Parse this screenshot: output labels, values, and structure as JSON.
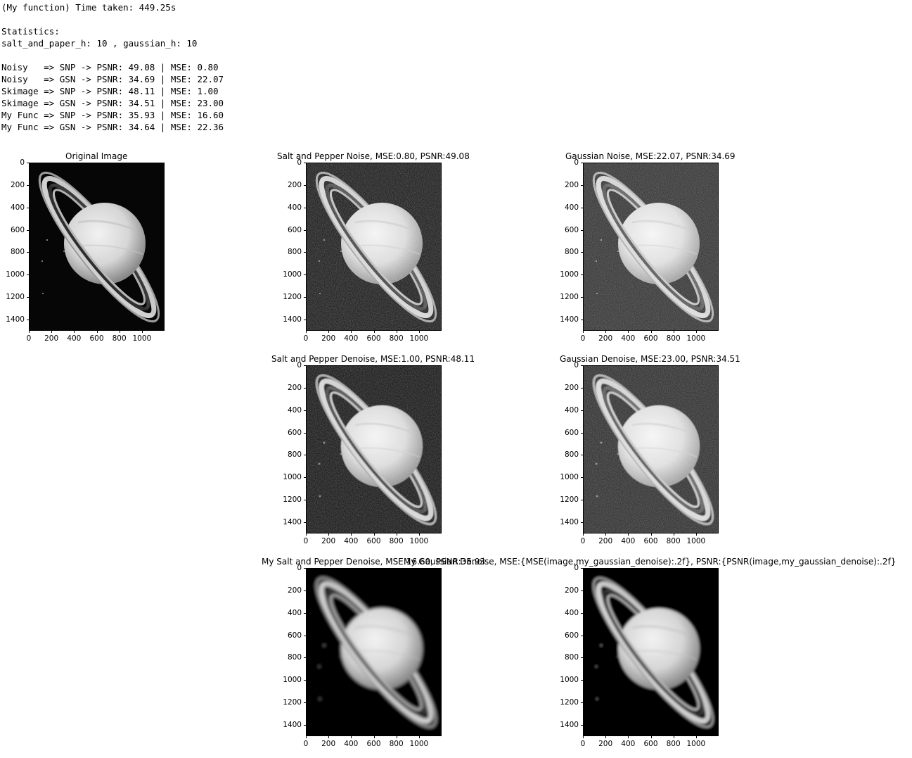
{
  "console": {
    "lines": [
      "(My function) Time taken: 449.25s",
      "",
      "Statistics:",
      "salt_and_paper_h: 10 , gaussian_h: 10",
      "",
      "Noisy   => SNP -> PSNR: 49.08 | MSE: 0.80",
      "Noisy   => GSN -> PSNR: 34.69 | MSE: 22.07",
      "Skimage => SNP -> PSNR: 48.11 | MSE: 1.00",
      "Skimage => GSN -> PSNR: 34.51 | MSE: 23.00",
      "My Func => SNP -> PSNR: 35.93 | MSE: 16.60",
      "My Func => GSN -> PSNR: 34.64 | MSE: 22.36"
    ]
  },
  "axes": {
    "y_ticks": [
      "0",
      "200",
      "400",
      "600",
      "800",
      "1000",
      "1200",
      "1400"
    ],
    "x_ticks": [
      "0",
      "200",
      "400",
      "600",
      "800",
      "1000"
    ],
    "y_values": [
      0,
      200,
      400,
      600,
      800,
      1000,
      1200,
      1400
    ],
    "x_values": [
      0,
      200,
      400,
      600,
      800,
      1000
    ],
    "img_height": 1500,
    "img_width": 1200
  },
  "panels": [
    {
      "title": "Original Image",
      "blur": 0,
      "noise": "none"
    },
    {
      "title": "Salt and Pepper Noise, MSE:0.80, PSNR:49.08",
      "blur": 0,
      "noise": "snp"
    },
    {
      "title": "Gaussian Noise, MSE:22.07, PSNR:34.69",
      "blur": 0,
      "noise": "gsn"
    },
    {
      "title": "Salt and Pepper Denoise, MSE:1.00, PSNR:48.11",
      "blur": 0.4,
      "noise": "snp"
    },
    {
      "title": "Gaussian Denoise, MSE:23.00, PSNR:34.51",
      "blur": 0.4,
      "noise": "gsn"
    },
    {
      "title": "My Salt and Pepper Denoise, MSE:16.60, PSNR:35.93",
      "blur": 2.2,
      "noise": "none"
    },
    {
      "title": "My Gaussian Denoise, MSE:{MSE(image,my_gaussian_denoise):.2f}, PSNR:{PSNR(image,my_gaussian_denoise):.2f}",
      "blur": 1.6,
      "noise": "none"
    }
  ],
  "colors": {
    "background": "#ffffff",
    "image_bg": "#050505",
    "planet": "#dcdcdc",
    "ring": "#bdbdbd"
  }
}
